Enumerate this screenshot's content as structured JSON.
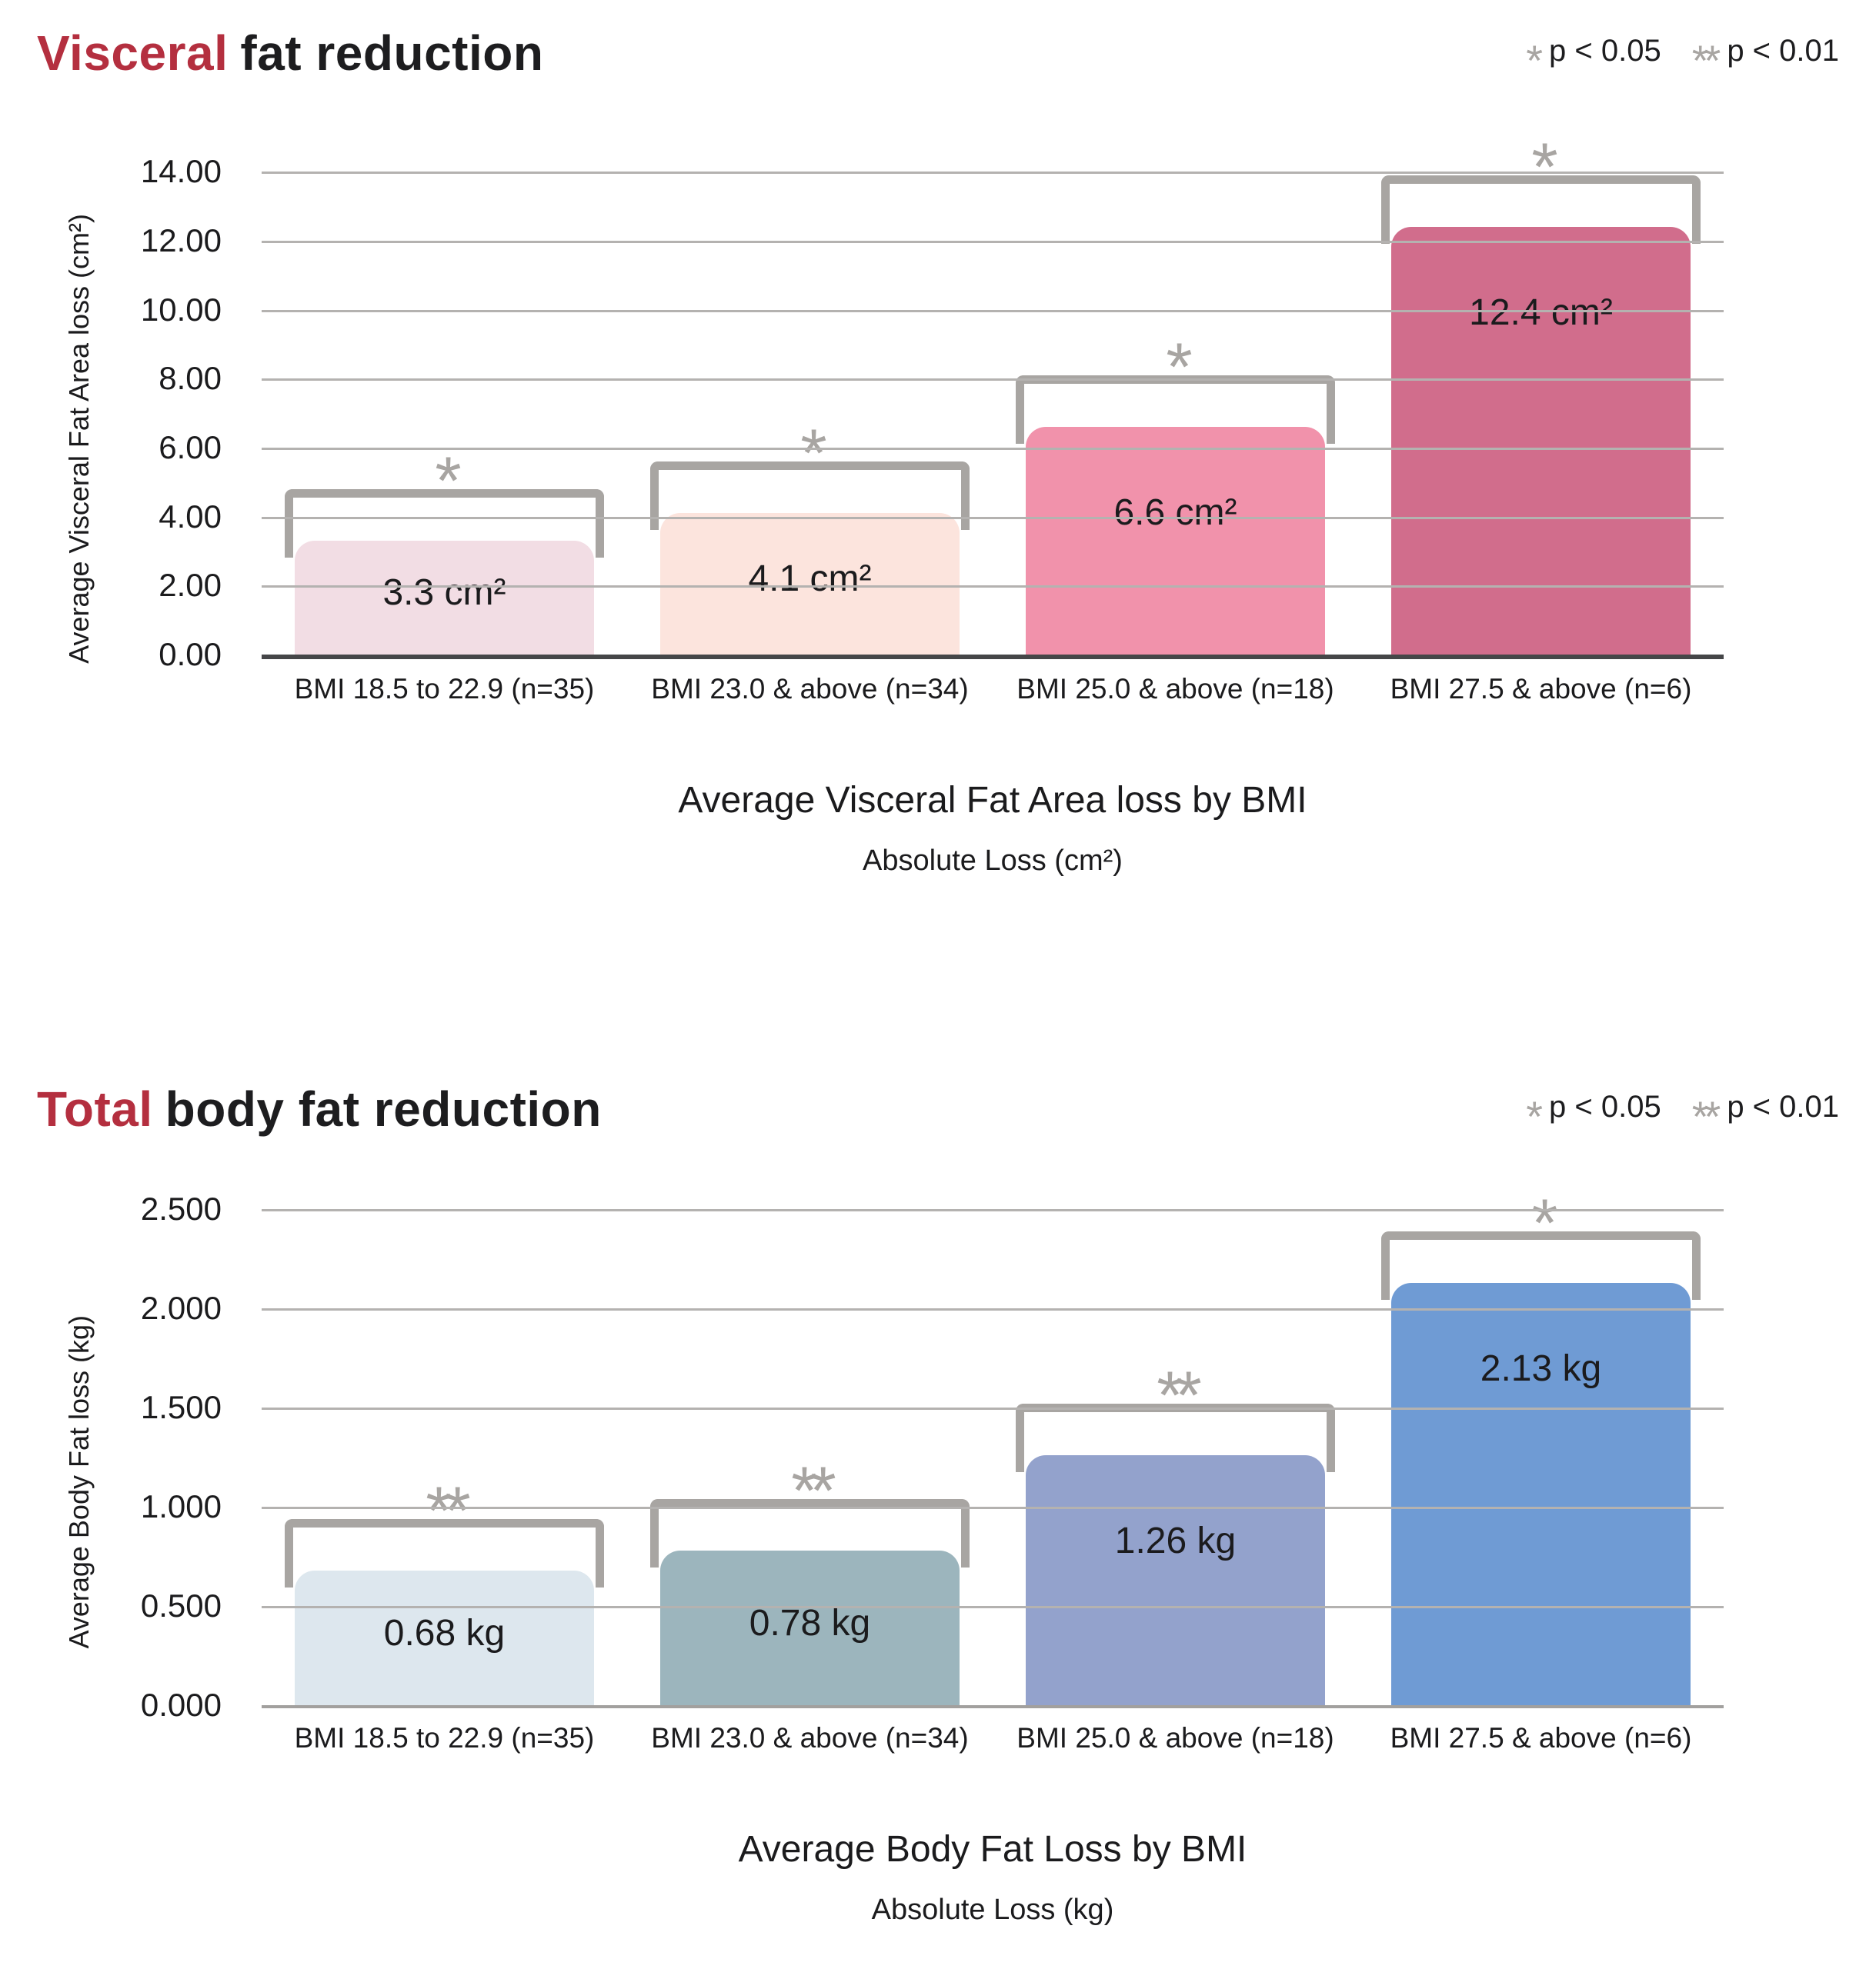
{
  "accent_color": "#b42f3f",
  "significance_marker_color": "#a8a5a2",
  "gridline_color": "#b4b2b0",
  "chart_data": [
    {
      "type": "bar",
      "title": "Visceral fat reduction",
      "title_accent": "Visceral",
      "title_rest": "fat reduction",
      "legend": [
        {
          "symbol": "*",
          "text": "p < 0.05"
        },
        {
          "symbol": "**",
          "text": "p < 0.01"
        }
      ],
      "legend_position": "top-right",
      "grid": true,
      "ylabel": "Average Visceral Fat Area loss (cm²)",
      "ylim": [
        0,
        14
      ],
      "ytick_labels": [
        "14.00",
        "12.00",
        "10.00",
        "8.00",
        "6.00",
        "4.00",
        "2.00",
        "0.00"
      ],
      "categories": [
        "BMI 18.5 to 22.9 (n=35)",
        "BMI 23.0 & above (n=34)",
        "BMI 25.0 & above (n=18)",
        "BMI 27.5 & above (n=6)"
      ],
      "values": [
        3.3,
        4.1,
        6.6,
        12.4
      ],
      "bar_labels": [
        "3.3 cm²",
        "4.1 cm²",
        "6.6 cm²",
        "12.4 cm²"
      ],
      "significance": [
        "*",
        "*",
        "*",
        "*"
      ],
      "bar_colors": [
        "#f2dde4",
        "#fce4dd",
        "#f192ab",
        "#d16d8c"
      ],
      "subtitle": "Average Visceral Fat Area loss by BMI",
      "caption": "Absolute Loss (cm²)"
    },
    {
      "type": "bar",
      "title": "Total body fat reduction",
      "title_accent": "Total",
      "title_rest": "body fat reduction",
      "legend": [
        {
          "symbol": "*",
          "text": "p < 0.05"
        },
        {
          "symbol": "**",
          "text": "p < 0.01"
        }
      ],
      "legend_position": "top-right",
      "grid": true,
      "ylabel": "Average Body Fat loss (kg)",
      "ylim": [
        0,
        2.5
      ],
      "ytick_labels": [
        "2.500",
        "2.000",
        "1.500",
        "1.000",
        "0.500",
        "0.000"
      ],
      "categories": [
        "BMI 18.5 to 22.9 (n=35)",
        "BMI 23.0 & above (n=34)",
        "BMI 25.0 & above (n=18)",
        "BMI 27.5 & above (n=6)"
      ],
      "values": [
        0.68,
        0.78,
        1.26,
        2.13
      ],
      "bar_labels": [
        "0.68 kg",
        "0.78 kg",
        "1.26 kg",
        "2.13 kg"
      ],
      "significance": [
        "**",
        "**",
        "**",
        "*"
      ],
      "bar_colors": [
        "#dde7ee",
        "#9cb5bd",
        "#93a2cc",
        "#6f9bd4"
      ],
      "subtitle": "Average Body Fat Loss by BMI",
      "caption": "Absolute Loss (kg)"
    }
  ]
}
